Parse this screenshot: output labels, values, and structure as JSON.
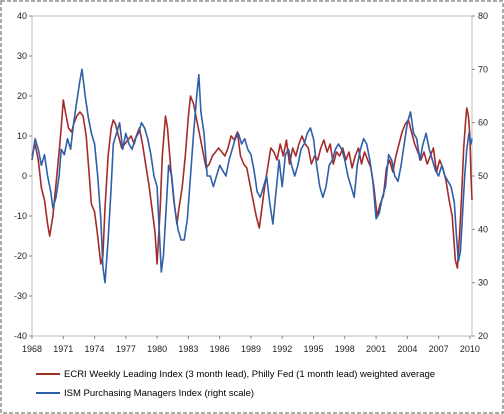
{
  "chart_data": {
    "type": "line",
    "title": "",
    "xlabel": "",
    "ylabel": "",
    "x_ticks": [
      "1968",
      "1971",
      "1974",
      "1977",
      "1980",
      "1983",
      "1986",
      "1989",
      "1992",
      "1995",
      "1998",
      "2001",
      "2004",
      "2007",
      "2010"
    ],
    "x_range": [
      1968,
      2010.2
    ],
    "ylim_left": [
      -40,
      40
    ],
    "ylim_right": [
      20,
      80
    ],
    "y_ticks_left": [
      40,
      30,
      20,
      10,
      0,
      -10,
      -20,
      -30,
      -40
    ],
    "y_ticks_right": [
      80,
      70,
      60,
      50,
      40,
      30,
      20
    ],
    "grid": "none",
    "legend_position": "bottom",
    "series": [
      {
        "name": "ECRI Weekly Leading Index (3 month lead), Philly Fed (1 month lead) weighted average",
        "axis": "left",
        "color": "#a52a2a",
        "points": [
          [
            1968.0,
            5
          ],
          [
            1968.3,
            8
          ],
          [
            1968.6,
            4
          ],
          [
            1968.9,
            -3
          ],
          [
            1969.2,
            -6
          ],
          [
            1969.5,
            -12
          ],
          [
            1969.7,
            -15
          ],
          [
            1970.0,
            -10
          ],
          [
            1970.3,
            -2
          ],
          [
            1970.6,
            6
          ],
          [
            1970.8,
            12
          ],
          [
            1971.0,
            19
          ],
          [
            1971.2,
            16
          ],
          [
            1971.5,
            12
          ],
          [
            1971.8,
            11
          ],
          [
            1972.0,
            13
          ],
          [
            1972.3,
            15
          ],
          [
            1972.6,
            16
          ],
          [
            1972.9,
            15
          ],
          [
            1973.2,
            10
          ],
          [
            1973.5,
            0
          ],
          [
            1973.7,
            -7
          ],
          [
            1974.0,
            -9
          ],
          [
            1974.3,
            -15
          ],
          [
            1974.6,
            -22
          ],
          [
            1974.8,
            -20
          ],
          [
            1975.0,
            -8
          ],
          [
            1975.3,
            5
          ],
          [
            1975.6,
            12
          ],
          [
            1975.8,
            14
          ],
          [
            1976.0,
            13
          ],
          [
            1976.3,
            10
          ],
          [
            1976.6,
            7
          ],
          [
            1976.9,
            8
          ],
          [
            1977.2,
            9
          ],
          [
            1977.5,
            10
          ],
          [
            1977.8,
            8
          ],
          [
            1978.0,
            10
          ],
          [
            1978.3,
            12
          ],
          [
            1978.6,
            8
          ],
          [
            1978.9,
            3
          ],
          [
            1979.2,
            -2
          ],
          [
            1979.5,
            -8
          ],
          [
            1979.8,
            -14
          ],
          [
            1980.0,
            -22
          ],
          [
            1980.3,
            -8
          ],
          [
            1980.5,
            5
          ],
          [
            1980.8,
            15
          ],
          [
            1981.0,
            12
          ],
          [
            1981.3,
            2
          ],
          [
            1981.6,
            -6
          ],
          [
            1981.9,
            -12
          ],
          [
            1982.1,
            -8
          ],
          [
            1982.4,
            -3
          ],
          [
            1982.7,
            5
          ],
          [
            1983.0,
            15
          ],
          [
            1983.2,
            20
          ],
          [
            1983.5,
            18
          ],
          [
            1983.8,
            14
          ],
          [
            1984.1,
            10
          ],
          [
            1984.4,
            6
          ],
          [
            1984.7,
            2
          ],
          [
            1985.0,
            3
          ],
          [
            1985.3,
            5
          ],
          [
            1985.6,
            6
          ],
          [
            1985.9,
            7
          ],
          [
            1986.2,
            6
          ],
          [
            1986.5,
            5
          ],
          [
            1986.8,
            7
          ],
          [
            1987.1,
            10
          ],
          [
            1987.4,
            9
          ],
          [
            1987.7,
            11
          ],
          [
            1988.0,
            5
          ],
          [
            1988.3,
            3
          ],
          [
            1988.6,
            2
          ],
          [
            1988.9,
            -2
          ],
          [
            1989.2,
            -6
          ],
          [
            1989.5,
            -10
          ],
          [
            1989.8,
            -13
          ],
          [
            1990.0,
            -9
          ],
          [
            1990.3,
            -3
          ],
          [
            1990.6,
            2
          ],
          [
            1990.9,
            7
          ],
          [
            1991.2,
            6
          ],
          [
            1991.5,
            4
          ],
          [
            1991.8,
            8
          ],
          [
            1992.1,
            5
          ],
          [
            1992.4,
            9
          ],
          [
            1992.7,
            3
          ],
          [
            1993.0,
            7
          ],
          [
            1993.3,
            5
          ],
          [
            1993.6,
            8
          ],
          [
            1993.9,
            10
          ],
          [
            1994.2,
            8
          ],
          [
            1994.5,
            7
          ],
          [
            1994.8,
            3
          ],
          [
            1995.1,
            5
          ],
          [
            1995.4,
            4
          ],
          [
            1995.7,
            7
          ],
          [
            1996.0,
            9
          ],
          [
            1996.3,
            6
          ],
          [
            1996.6,
            8
          ],
          [
            1996.9,
            3
          ],
          [
            1997.2,
            6
          ],
          [
            1997.5,
            5
          ],
          [
            1997.8,
            7
          ],
          [
            1998.1,
            4
          ],
          [
            1998.4,
            6
          ],
          [
            1998.7,
            2
          ],
          [
            1999.0,
            5
          ],
          [
            1999.3,
            7
          ],
          [
            1999.6,
            3
          ],
          [
            1999.9,
            6
          ],
          [
            2000.2,
            4
          ],
          [
            2000.5,
            2
          ],
          [
            2000.8,
            -3
          ],
          [
            2001.1,
            -10
          ],
          [
            2001.4,
            -7
          ],
          [
            2001.7,
            -5
          ],
          [
            2002.0,
            2
          ],
          [
            2002.3,
            4
          ],
          [
            2002.6,
            1
          ],
          [
            2002.9,
            5
          ],
          [
            2003.2,
            8
          ],
          [
            2003.5,
            11
          ],
          [
            2003.8,
            13
          ],
          [
            2004.1,
            14
          ],
          [
            2004.4,
            11
          ],
          [
            2004.7,
            8
          ],
          [
            2005.0,
            6
          ],
          [
            2005.3,
            4
          ],
          [
            2005.6,
            6
          ],
          [
            2005.9,
            3
          ],
          [
            2006.2,
            5
          ],
          [
            2006.5,
            7
          ],
          [
            2006.8,
            1
          ],
          [
            2007.1,
            4
          ],
          [
            2007.4,
            2
          ],
          [
            2007.7,
            -1
          ],
          [
            2008.0,
            -6
          ],
          [
            2008.3,
            -10
          ],
          [
            2008.6,
            -21
          ],
          [
            2008.8,
            -23
          ],
          [
            2009.0,
            -15
          ],
          [
            2009.2,
            -5
          ],
          [
            2009.4,
            7
          ],
          [
            2009.6,
            14
          ],
          [
            2009.7,
            17
          ],
          [
            2009.85,
            15
          ],
          [
            2010.0,
            10
          ],
          [
            2010.1,
            0
          ],
          [
            2010.2,
            -6
          ]
        ]
      },
      {
        "name": "ISM Purchasing Managers Index (right scale)",
        "axis": "right",
        "color": "#2e5fa8",
        "points": [
          [
            1968.0,
            53
          ],
          [
            1968.3,
            57
          ],
          [
            1968.6,
            55
          ],
          [
            1968.9,
            52
          ],
          [
            1969.2,
            54
          ],
          [
            1969.5,
            50
          ],
          [
            1969.8,
            47
          ],
          [
            1970.0,
            44
          ],
          [
            1970.3,
            46
          ],
          [
            1970.6,
            50
          ],
          [
            1970.8,
            55
          ],
          [
            1971.1,
            54
          ],
          [
            1971.4,
            57
          ],
          [
            1971.7,
            55
          ],
          [
            1972.0,
            60
          ],
          [
            1972.3,
            64
          ],
          [
            1972.6,
            68
          ],
          [
            1972.8,
            70
          ],
          [
            1973.1,
            65
          ],
          [
            1973.4,
            61
          ],
          [
            1973.7,
            58
          ],
          [
            1974.0,
            56
          ],
          [
            1974.3,
            50
          ],
          [
            1974.6,
            42
          ],
          [
            1974.8,
            33
          ],
          [
            1975.0,
            30
          ],
          [
            1975.3,
            38
          ],
          [
            1975.6,
            48
          ],
          [
            1975.8,
            56
          ],
          [
            1976.1,
            58
          ],
          [
            1976.4,
            60
          ],
          [
            1976.7,
            55
          ],
          [
            1977.0,
            58
          ],
          [
            1977.3,
            56
          ],
          [
            1977.6,
            55
          ],
          [
            1977.9,
            57
          ],
          [
            1978.2,
            58
          ],
          [
            1978.5,
            60
          ],
          [
            1978.8,
            59
          ],
          [
            1979.1,
            57
          ],
          [
            1979.4,
            54
          ],
          [
            1979.7,
            50
          ],
          [
            1980.0,
            48
          ],
          [
            1980.2,
            40
          ],
          [
            1980.4,
            32
          ],
          [
            1980.6,
            35
          ],
          [
            1980.9,
            45
          ],
          [
            1981.1,
            52
          ],
          [
            1981.4,
            50
          ],
          [
            1981.7,
            44
          ],
          [
            1982.0,
            40
          ],
          [
            1982.3,
            38
          ],
          [
            1982.6,
            38
          ],
          [
            1982.9,
            42
          ],
          [
            1983.2,
            50
          ],
          [
            1983.5,
            58
          ],
          [
            1983.8,
            65
          ],
          [
            1984.0,
            69
          ],
          [
            1984.2,
            62
          ],
          [
            1984.5,
            58
          ],
          [
            1984.8,
            50
          ],
          [
            1985.1,
            50
          ],
          [
            1985.4,
            48
          ],
          [
            1985.7,
            50
          ],
          [
            1986.0,
            52
          ],
          [
            1986.3,
            51
          ],
          [
            1986.6,
            50
          ],
          [
            1986.9,
            53
          ],
          [
            1987.2,
            55
          ],
          [
            1987.5,
            57
          ],
          [
            1987.8,
            58
          ],
          [
            1988.1,
            56
          ],
          [
            1988.4,
            57
          ],
          [
            1988.7,
            55
          ],
          [
            1989.0,
            54
          ],
          [
            1989.3,
            51
          ],
          [
            1989.6,
            47
          ],
          [
            1989.9,
            46
          ],
          [
            1990.2,
            48
          ],
          [
            1990.5,
            50
          ],
          [
            1990.8,
            45
          ],
          [
            1991.1,
            41
          ],
          [
            1991.4,
            47
          ],
          [
            1991.7,
            53
          ],
          [
            1992.0,
            48
          ],
          [
            1992.3,
            54
          ],
          [
            1992.6,
            55
          ],
          [
            1992.9,
            52
          ],
          [
            1993.2,
            50
          ],
          [
            1993.5,
            52
          ],
          [
            1993.8,
            55
          ],
          [
            1994.1,
            56
          ],
          [
            1994.4,
            58
          ],
          [
            1994.7,
            59
          ],
          [
            1995.0,
            57
          ],
          [
            1995.3,
            52
          ],
          [
            1995.6,
            48
          ],
          [
            1995.9,
            46
          ],
          [
            1996.2,
            48
          ],
          [
            1996.5,
            52
          ],
          [
            1996.8,
            53
          ],
          [
            1997.1,
            55
          ],
          [
            1997.4,
            56
          ],
          [
            1997.7,
            55
          ],
          [
            1998.0,
            53
          ],
          [
            1998.3,
            50
          ],
          [
            1998.6,
            48
          ],
          [
            1998.9,
            46
          ],
          [
            1999.2,
            52
          ],
          [
            1999.5,
            55
          ],
          [
            1999.8,
            57
          ],
          [
            2000.1,
            56
          ],
          [
            2000.4,
            53
          ],
          [
            2000.7,
            49
          ],
          [
            2001.0,
            42
          ],
          [
            2001.3,
            43
          ],
          [
            2001.6,
            46
          ],
          [
            2001.9,
            48
          ],
          [
            2002.2,
            54
          ],
          [
            2002.5,
            53
          ],
          [
            2002.8,
            50
          ],
          [
            2003.1,
            49
          ],
          [
            2003.4,
            52
          ],
          [
            2003.7,
            56
          ],
          [
            2004.0,
            60
          ],
          [
            2004.3,
            62
          ],
          [
            2004.6,
            58
          ],
          [
            2004.9,
            57
          ],
          [
            2005.2,
            53
          ],
          [
            2005.5,
            56
          ],
          [
            2005.8,
            58
          ],
          [
            2006.1,
            55
          ],
          [
            2006.4,
            53
          ],
          [
            2006.7,
            51
          ],
          [
            2007.0,
            50
          ],
          [
            2007.3,
            52
          ],
          [
            2007.6,
            50
          ],
          [
            2007.9,
            49
          ],
          [
            2008.2,
            48
          ],
          [
            2008.5,
            45
          ],
          [
            2008.7,
            39
          ],
          [
            2008.9,
            34
          ],
          [
            2009.1,
            36
          ],
          [
            2009.3,
            43
          ],
          [
            2009.5,
            50
          ],
          [
            2009.7,
            55
          ],
          [
            2009.9,
            58
          ],
          [
            2010.1,
            56
          ],
          [
            2010.2,
            57
          ]
        ]
      }
    ]
  }
}
